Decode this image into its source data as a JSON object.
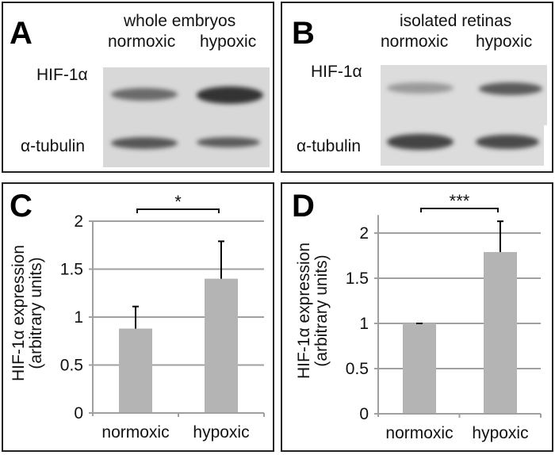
{
  "panels": {
    "A": {
      "letter": "A",
      "title": "whole embryos",
      "lanes": [
        "normoxic",
        "hypoxic"
      ],
      "rows": [
        "HIF-1α",
        "α-tubulin"
      ]
    },
    "B": {
      "letter": "B",
      "title": "isolated retinas",
      "lanes": [
        "normoxic",
        "hypoxic"
      ],
      "rows": [
        "HIF-1α",
        "α-tubulin"
      ]
    },
    "C": {
      "letter": "C"
    },
    "D": {
      "letter": "D"
    }
  },
  "colors": {
    "bar": "#b4b4b4",
    "grid": "#a0a0a0",
    "error": "#000000"
  },
  "chart_data": [
    {
      "panel": "C",
      "type": "bar",
      "categories": [
        "normoxic",
        "hypoxic"
      ],
      "values": [
        0.88,
        1.4
      ],
      "error_upper": [
        1.11,
        1.79
      ],
      "ylabel": "HIF-1α expression (arbitrary units)",
      "ylabel_lines": [
        "HIF-1α expression",
        "(arbitrary units)"
      ],
      "ylim": [
        0,
        2
      ],
      "yticks": [
        "0",
        "0.5",
        "1",
        "1.5",
        "2"
      ],
      "grid": true,
      "significance": "*"
    },
    {
      "panel": "D",
      "type": "bar",
      "categories": [
        "normoxic",
        "hypoxic"
      ],
      "values": [
        1.0,
        1.79
      ],
      "error_upper": [
        1.0,
        2.13
      ],
      "ylabel": "HIF-1α expression (arbitrary units)",
      "ylabel_lines": [
        "HIF-1α expression",
        "(arbitrary units)"
      ],
      "ylim": [
        0,
        2.2
      ],
      "yticks": [
        "0",
        "0.5",
        "1",
        "1.5",
        "2"
      ],
      "grid": true,
      "significance": "***"
    }
  ]
}
